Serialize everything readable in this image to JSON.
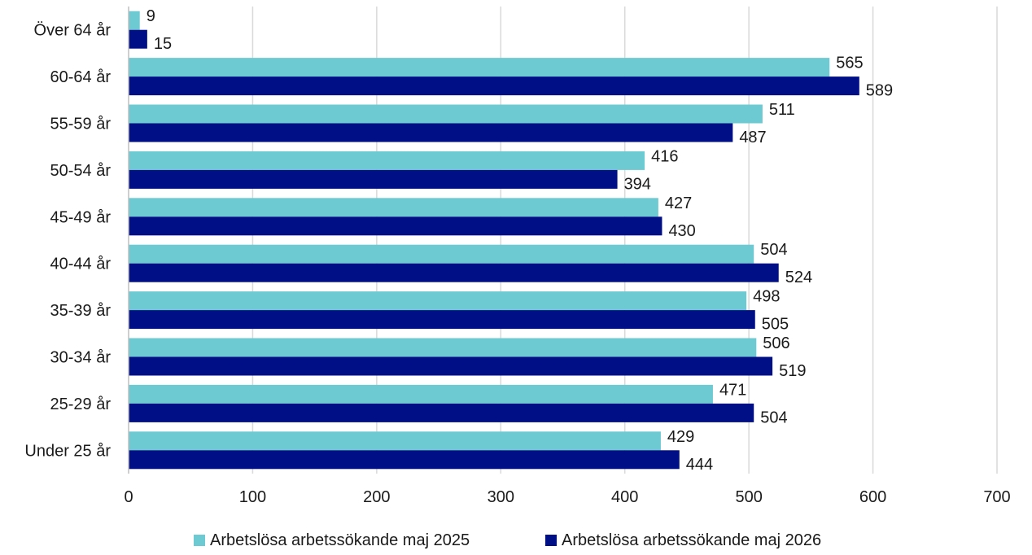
{
  "chart_data": {
    "type": "bar",
    "orientation": "horizontal",
    "categories": [
      "Över 64 år",
      "60-64 år",
      "55-59 år",
      "50-54 år",
      "45-49 år",
      "40-44 år",
      "35-39 år",
      "30-34 år",
      "25-29 år",
      "Under 25 år"
    ],
    "series": [
      {
        "name": "Arbetslösa arbetssökande maj 2025",
        "color": "#6ecad2",
        "values": [
          9,
          565,
          511,
          416,
          427,
          504,
          498,
          506,
          471,
          429
        ]
      },
      {
        "name": "Arbetslösa arbetssökande maj 2026",
        "color": "#000f85",
        "values": [
          15,
          589,
          487,
          394,
          430,
          524,
          505,
          519,
          504,
          444
        ]
      }
    ],
    "xlim": [
      0,
      700
    ],
    "xticks": [
      0,
      100,
      200,
      300,
      400,
      500,
      600,
      700
    ],
    "grid": true,
    "legend_position": "bottom",
    "data_labels": true
  }
}
